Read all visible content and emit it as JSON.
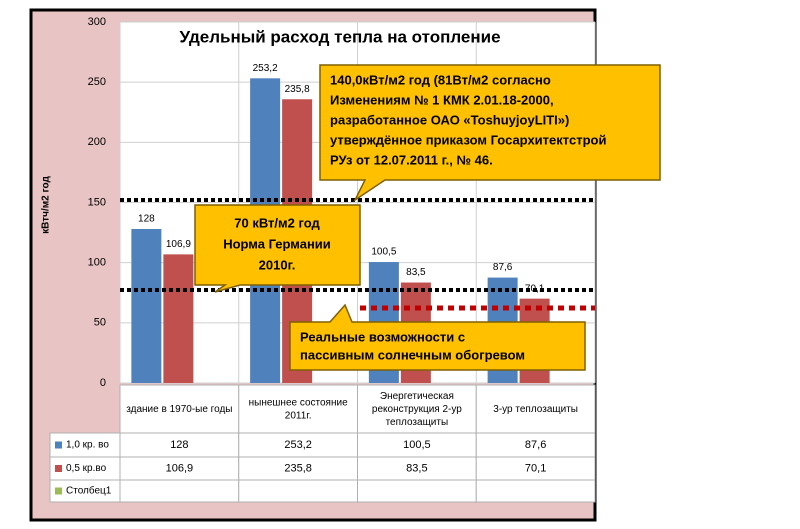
{
  "chart_data": {
    "type": "bar",
    "title": "Удельный расход тепла на отопление",
    "y_label": "кВтч/м2 год",
    "categories": [
      "здание в 1970-ые годы",
      "нынешнее состояние 2011г.",
      "Энергетическая реконструкция 2-ур теплозащиты",
      "3-ур теплозащиты"
    ],
    "series": [
      {
        "name": "1,0 кр. во",
        "color": "#4f81bd",
        "values": [
          128,
          253.2,
          100.5,
          87.6
        ],
        "value_labels": [
          "128",
          "253,2",
          "100,5",
          "87,6"
        ]
      },
      {
        "name": "0,5 кр.во",
        "color": "#c0504d",
        "values": [
          106.9,
          235.8,
          83.5,
          70.1
        ],
        "value_labels": [
          "106,9",
          "235,8",
          "83,5",
          "70,1"
        ]
      },
      {
        "name": "Столбец1",
        "color": "#9bbb59",
        "values": [
          null,
          null,
          null,
          null
        ]
      }
    ],
    "ylim": [
      0,
      300
    ],
    "yticks": [
      0,
      50,
      100,
      150,
      200,
      250,
      300
    ],
    "grid": true,
    "annotations": [
      {
        "lines": [
          "140,0кВт/м2   год   (81Вт/м2  согласно",
          "Изменениям  №  1  КМК  2.01.18-2000,",
          "разработанное      ОАО      «ToshuyjoyLITI»)",
          "утверждённое приказом Госархитектстрой",
          "РУз от 12.07.2011 г., № 46."
        ]
      },
      {
        "lines": [
          "70 кВт/м2 год",
          "Норма Германии",
          "2010г."
        ]
      },
      {
        "lines": [
          "Реальные возможности с",
          "пассивным солнечным обогревом"
        ]
      }
    ]
  }
}
